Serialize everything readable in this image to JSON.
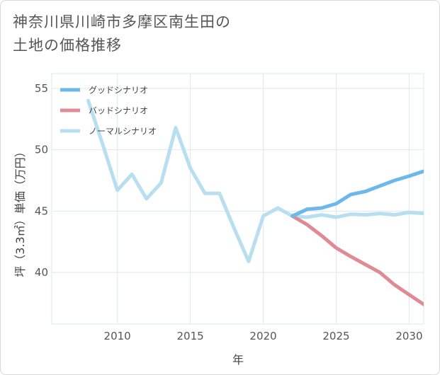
{
  "title_lines": [
    "神奈川県川崎市多摩区南生田の",
    "土地の価格推移"
  ],
  "chart_data": {
    "type": "line",
    "xlabel": "年",
    "ylabel": "坪（3.3㎡）単価（万円）",
    "xlim": [
      2005.5,
      2031
    ],
    "ylim": [
      35.8,
      56.2
    ],
    "xticks": [
      2010,
      2015,
      2020,
      2025,
      2030
    ],
    "yticks": [
      40,
      45,
      50,
      55
    ],
    "grid": true,
    "legend_position": "top-left",
    "series": [
      {
        "name": "グッドシナリオ",
        "color": "#6cb8ea",
        "x": [
          2022,
          2023,
          2024,
          2025,
          2026,
          2027,
          2028,
          2029,
          2030,
          2031
        ],
        "y": [
          44.6,
          45.15,
          45.25,
          45.6,
          46.35,
          46.6,
          47.05,
          47.5,
          47.85,
          48.25
        ]
      },
      {
        "name": "バッドシナリオ",
        "color": "#df8a94",
        "x": [
          2022,
          2023,
          2024,
          2025,
          2026,
          2027,
          2028,
          2029,
          2030,
          2031
        ],
        "y": [
          44.6,
          43.9,
          43.0,
          42.0,
          41.3,
          40.65,
          40.0,
          39.0,
          38.2,
          37.4
        ]
      },
      {
        "name": "ノーマルシナリオ",
        "color": "#b8dff0",
        "x": [
          2008,
          2009,
          2010,
          2011,
          2012,
          2013,
          2014,
          2015,
          2016,
          2017,
          2018,
          2019,
          2020,
          2021,
          2022,
          2023,
          2024,
          2025,
          2026,
          2027,
          2028,
          2029,
          2030,
          2031
        ],
        "y": [
          54.0,
          50.4,
          46.7,
          48.0,
          46.0,
          47.3,
          51.8,
          48.5,
          46.45,
          46.45,
          43.6,
          40.9,
          44.6,
          45.25,
          44.6,
          44.5,
          44.7,
          44.5,
          44.75,
          44.7,
          44.8,
          44.7,
          44.9,
          44.8
        ]
      }
    ]
  }
}
